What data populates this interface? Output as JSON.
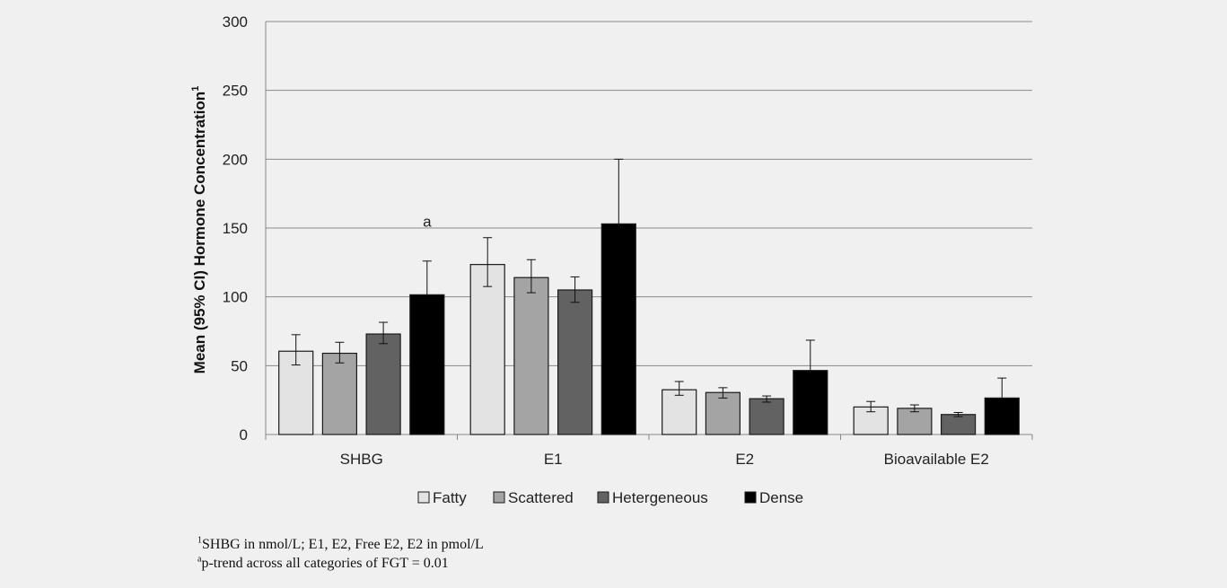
{
  "chart_data": {
    "type": "bar",
    "categories": [
      "SHBG",
      "E1",
      "E2",
      "Bioavailable E2"
    ],
    "series": [
      {
        "name": "Fatty",
        "color": "#e3e3e3",
        "values": [
          60.5,
          123.5,
          32.5,
          20
        ],
        "ci_low": [
          50.5,
          107.5,
          28.5,
          16.5
        ],
        "ci_high": [
          72.5,
          143,
          38.5,
          24
        ]
      },
      {
        "name": "Scattered",
        "color": "#a4a4a4",
        "values": [
          59,
          114,
          30.5,
          19
        ],
        "ci_low": [
          52,
          103,
          26.5,
          16.5
        ],
        "ci_high": [
          67,
          127,
          34,
          21.5
        ]
      },
      {
        "name": "Hetergeneous",
        "color": "#626262",
        "values": [
          73,
          105,
          26,
          14.5
        ],
        "ci_low": [
          66,
          96,
          23.5,
          13
        ],
        "ci_high": [
          81.5,
          114.5,
          28,
          16
        ]
      },
      {
        "name": "Dense",
        "color": "#000000",
        "values": [
          101.5,
          153,
          46.5,
          26.5
        ],
        "ci_low": [
          101.5,
          153,
          46.5,
          26.5
        ],
        "ci_high": [
          126,
          200,
          68.5,
          41
        ]
      }
    ],
    "ylabel": "Mean (95% CI) Hormone Concentration",
    "ylabel_superscript": "1",
    "ylim": [
      0,
      300
    ],
    "yticks": [
      0,
      50,
      100,
      150,
      200,
      250,
      300
    ],
    "grid": true,
    "legend_position": "bottom",
    "annotations": [
      {
        "text": "a",
        "category": "SHBG",
        "series": "Dense"
      }
    ]
  },
  "footnotes": [
    {
      "mark": "1",
      "text": "SHBG in nmol/L; E1, E2, Free E2, E2 in pmol/L"
    },
    {
      "mark": "a",
      "text": "p-trend across all categories of FGT = 0.01"
    }
  ]
}
